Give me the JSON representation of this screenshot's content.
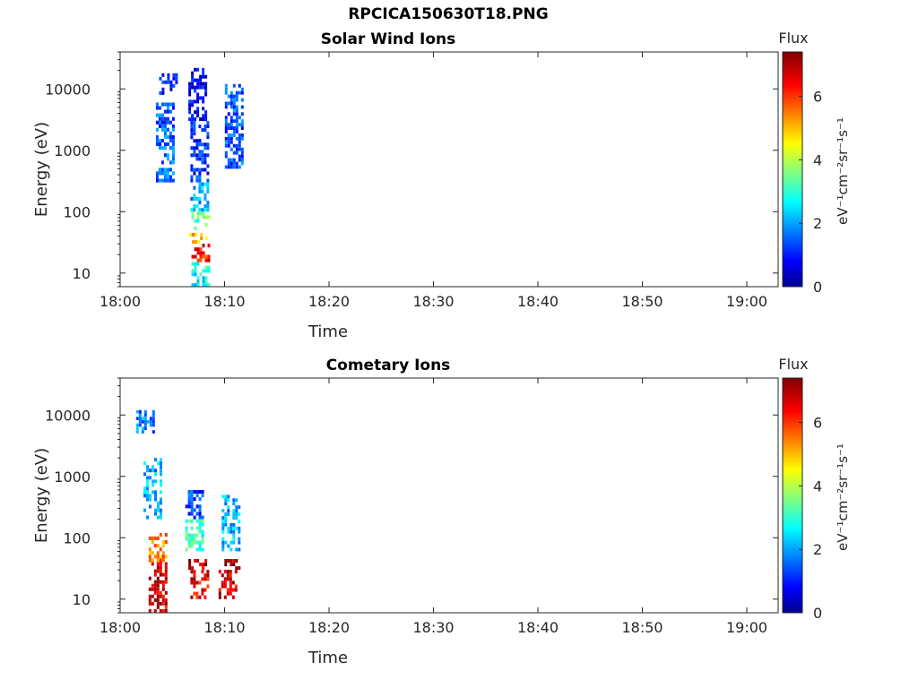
{
  "figure": {
    "title": "RPCICA150630T18.PNG"
  },
  "colors": {
    "colormap": "jet",
    "axis": "#262626",
    "background": "#ffffff"
  },
  "chart_data": [
    {
      "type": "heatmap",
      "title": "Solar Wind Ions",
      "xlabel": "Time",
      "ylabel": "Energy (eV)",
      "x_ticks": [
        "18:00",
        "18:10",
        "18:20",
        "18:30",
        "18:40",
        "18:50",
        "19:00"
      ],
      "xlim_minutes": [
        0,
        63
      ],
      "y_ticks": [
        "10",
        "100",
        "1000",
        "10000"
      ],
      "y_scale": "log",
      "ylim": [
        6,
        40000
      ],
      "colorbar": {
        "label": "Flux",
        "unit": "eV⁻¹cm⁻²sr⁻¹s⁻¹",
        "ticks": [
          "0",
          "2",
          "4",
          "6"
        ],
        "range": [
          0,
          7.4
        ]
      },
      "cells": [
        {
          "t": 4.5,
          "e_lo": 8000,
          "e_hi": 18000,
          "flux": 1.0
        },
        {
          "t": 4.2,
          "e_lo": 300,
          "e_hi": 6000,
          "flux": 1.6
        },
        {
          "t": 7.3,
          "e_lo": 3000,
          "e_hi": 22000,
          "flux": 0.8
        },
        {
          "t": 7.5,
          "e_lo": 300,
          "e_hi": 3000,
          "flux": 1.2
        },
        {
          "t": 7.5,
          "e_lo": 100,
          "e_hi": 300,
          "flux": 2.2
        },
        {
          "t": 7.6,
          "e_lo": 50,
          "e_hi": 100,
          "flux": 3.4
        },
        {
          "t": 7.4,
          "e_lo": 30,
          "e_hi": 45,
          "flux": 5.2
        },
        {
          "t": 7.6,
          "e_lo": 15,
          "e_hi": 30,
          "flux": 6.4
        },
        {
          "t": 7.6,
          "e_lo": 6,
          "e_hi": 15,
          "flux": 2.8
        },
        {
          "t": 10.8,
          "e_lo": 500,
          "e_hi": 12000,
          "flux": 1.5
        }
      ]
    },
    {
      "type": "heatmap",
      "title": "Cometary Ions",
      "xlabel": "Time",
      "ylabel": "Energy (eV)",
      "x_ticks": [
        "18:00",
        "18:10",
        "18:20",
        "18:30",
        "18:40",
        "18:50",
        "19:00"
      ],
      "xlim_minutes": [
        0,
        63
      ],
      "y_ticks": [
        "10",
        "100",
        "1000",
        "10000"
      ],
      "y_scale": "log",
      "ylim": [
        6,
        40000
      ],
      "colorbar": {
        "label": "Flux",
        "unit": "eV⁻¹cm⁻²sr⁻¹s⁻¹",
        "ticks": [
          "0",
          "2",
          "4",
          "6"
        ],
        "range": [
          0,
          7.4
        ]
      },
      "cells": [
        {
          "t": 2.3,
          "e_lo": 5000,
          "e_hi": 12000,
          "flux": 1.8
        },
        {
          "t": 3.0,
          "e_lo": 200,
          "e_hi": 2000,
          "flux": 2.2
        },
        {
          "t": 3.5,
          "e_lo": 40,
          "e_hi": 120,
          "flux": 5.5
        },
        {
          "t": 3.5,
          "e_lo": 6,
          "e_hi": 40,
          "flux": 6.8
        },
        {
          "t": 7.0,
          "e_lo": 200,
          "e_hi": 600,
          "flux": 1.3
        },
        {
          "t": 7.0,
          "e_lo": 60,
          "e_hi": 200,
          "flux": 3.2
        },
        {
          "t": 7.3,
          "e_lo": 30,
          "e_hi": 45,
          "flux": 7.0
        },
        {
          "t": 7.5,
          "e_lo": 10,
          "e_hi": 30,
          "flux": 6.6
        },
        {
          "t": 10.5,
          "e_lo": 60,
          "e_hi": 500,
          "flux": 2.2
        },
        {
          "t": 10.5,
          "e_lo": 30,
          "e_hi": 45,
          "flux": 7.2
        },
        {
          "t": 10.2,
          "e_lo": 10,
          "e_hi": 30,
          "flux": 6.8
        }
      ]
    }
  ]
}
